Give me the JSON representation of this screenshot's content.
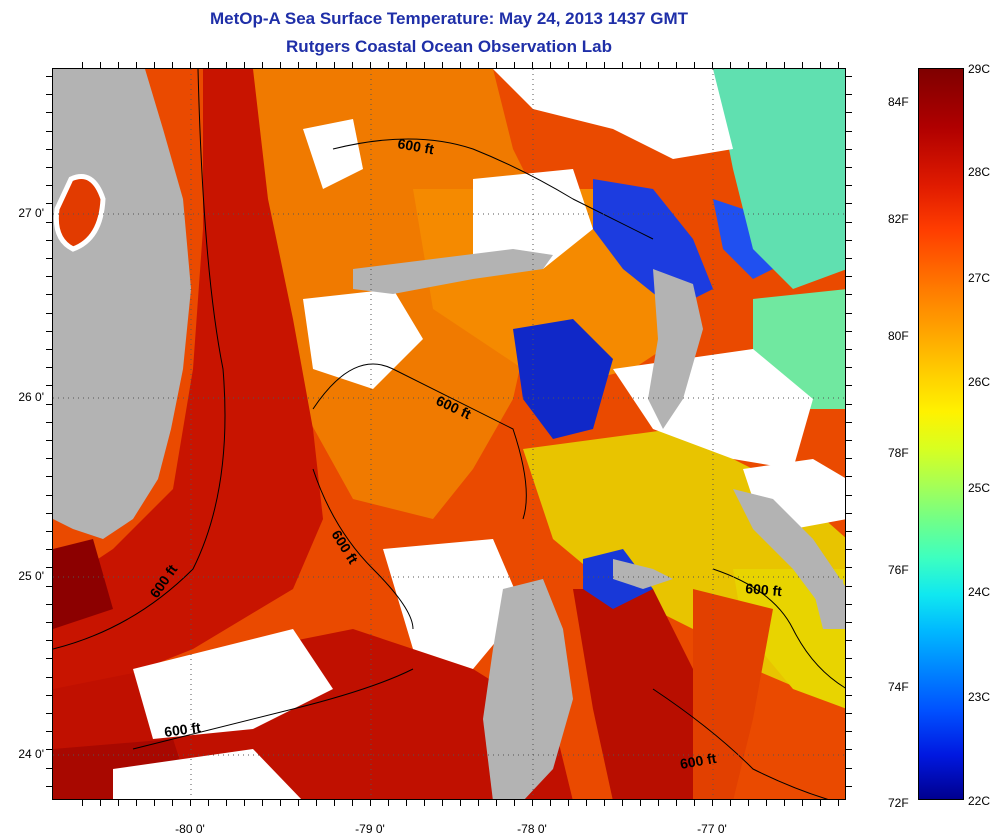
{
  "title": {
    "line1": "MetOp-A Sea Surface Temperature:  May 24, 2013 1437 GMT",
    "line2": "Rutgers Coastal Ocean Observation Lab"
  },
  "map": {
    "lat_labels": [
      "27 0'",
      "26 0'",
      "25 0'",
      "24 0'"
    ],
    "lon_labels": [
      "-80 0'",
      "-79 0'",
      "-78 0'",
      "-77 0'"
    ],
    "contour_label": "600 ft",
    "colors": {
      "land": "#b3b3b3",
      "cloud": "#ffffff",
      "gulf_stream": "#c81400",
      "warm": "#e23b00",
      "mid": "#f58a00",
      "cool": "#e8d400",
      "cold_shallow": "#1028c8",
      "cyan_patch": "#60e0b0"
    }
  },
  "colorbar": {
    "celsius_labels": [
      "29C",
      "28C",
      "27C",
      "26C",
      "25C",
      "24C",
      "23C",
      "22C"
    ],
    "fahrenheit_labels": [
      "84F",
      "82F",
      "80F",
      "78F",
      "76F",
      "74F",
      "72F"
    ],
    "range_c": [
      22,
      29
    ],
    "range_f": [
      72,
      84
    ]
  }
}
